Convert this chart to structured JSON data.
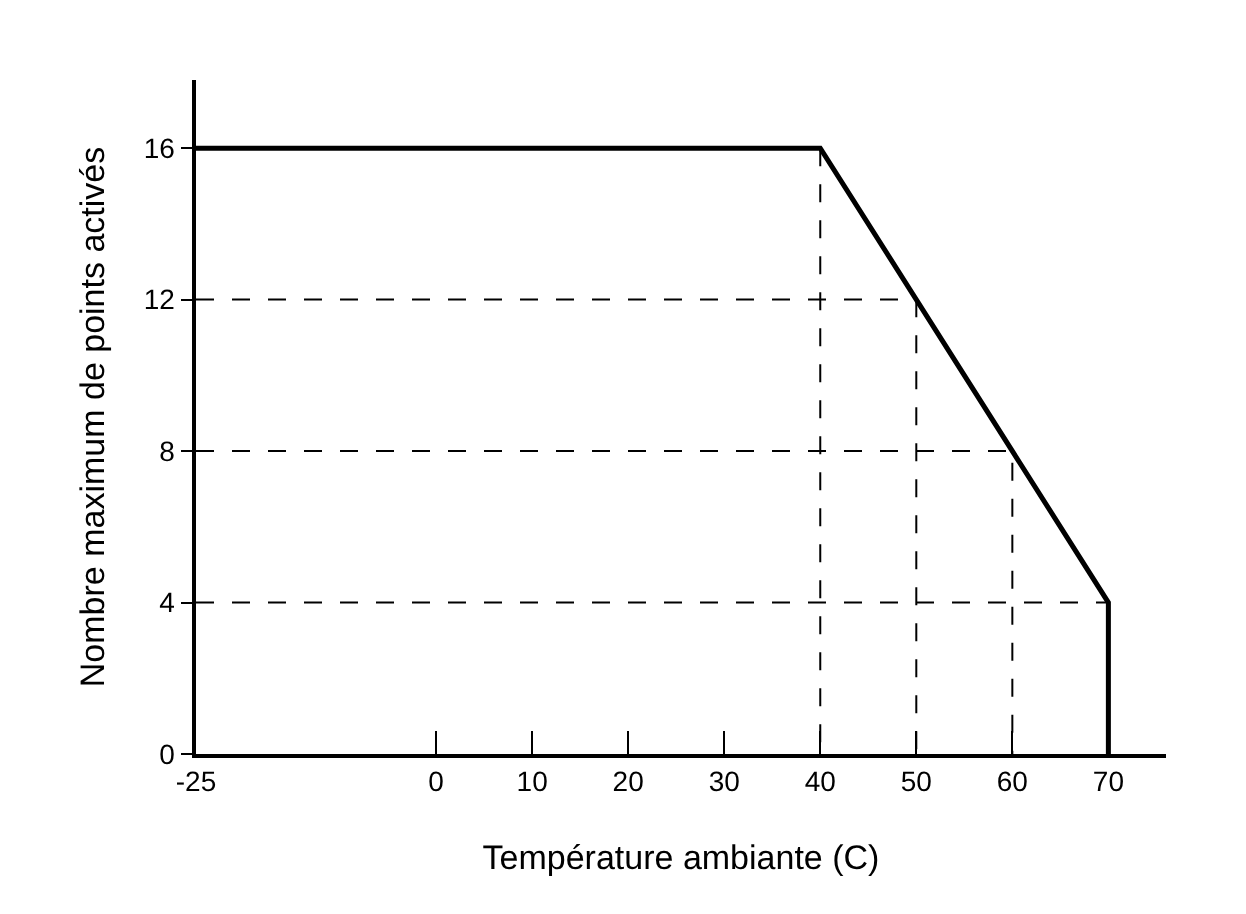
{
  "chart_data": {
    "type": "line",
    "xlabel": "Température ambiante (C)",
    "ylabel": "Nombre maximum de points activés",
    "xlim": [
      -25,
      76
    ],
    "xticks": [
      -25,
      0,
      10,
      20,
      30,
      40,
      50,
      60,
      70
    ],
    "ylim": [
      0,
      17.8
    ],
    "yticks": [
      0,
      4,
      8,
      12,
      16
    ],
    "grid": false,
    "marker": "none",
    "series": [
      {
        "color": "#000000",
        "line_style": "solid",
        "x": [
          -25,
          40,
          70,
          70
        ],
        "values": [
          16,
          16,
          4,
          0
        ]
      },
      {
        "color": "#000000",
        "line_style": "dashed",
        "x": [
          -25,
          50,
          50
        ],
        "values": [
          12,
          12,
          0
        ]
      },
      {
        "color": "#000000",
        "line_style": "dashed",
        "x": [
          -25,
          60,
          60
        ],
        "values": [
          8,
          8,
          0
        ]
      },
      {
        "color": "#000000",
        "line_style": "dashed",
        "x": [
          -25,
          70
        ],
        "values": [
          4,
          4
        ]
      },
      {
        "color": "#000000",
        "line_style": "dashed",
        "x": [
          40,
          40
        ],
        "values": [
          16,
          0
        ]
      }
    ]
  }
}
